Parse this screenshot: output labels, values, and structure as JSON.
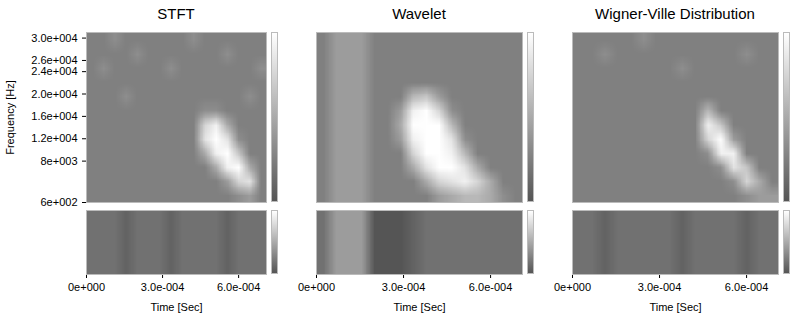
{
  "chart_data": [
    {
      "type": "heatmap",
      "title": "STFT",
      "xlabel": "Time [Sec]",
      "ylabel": "Frequency [Hz]",
      "xlim": [
        0,
        0.00071
      ],
      "ylim": [
        600,
        31000
      ],
      "xticks": [
        {
          "value": 0,
          "label": "0e+000"
        },
        {
          "value": 0.0003,
          "label": "3.0e-004"
        },
        {
          "value": 0.0006,
          "label": "6.0e-004"
        }
      ],
      "yticks": [
        {
          "value": 30000,
          "label": "3.0e+004"
        },
        {
          "value": 26000,
          "label": "2.6e+004"
        },
        {
          "value": 24000,
          "label": "2.4e+004"
        },
        {
          "value": 20000,
          "label": "2.0e+004"
        },
        {
          "value": 16000,
          "label": "1.6e+004"
        },
        {
          "value": 12000,
          "label": "1.2e+004"
        },
        {
          "value": 8000,
          "label": "8e+003"
        },
        {
          "value": 600,
          "label": "6e+002"
        }
      ],
      "colorbar": {
        "range": [
          -3,
          9
        ]
      },
      "cells": [
        [
          0,
          0,
          1,
          0,
          0,
          0,
          0,
          0,
          0,
          1,
          0,
          0,
          0,
          0,
          0,
          0
        ],
        [
          0,
          0,
          0,
          0,
          1,
          0,
          0,
          0,
          0,
          0,
          0,
          0,
          1,
          0,
          0,
          0
        ],
        [
          0,
          1,
          0,
          0,
          0,
          0,
          0,
          1,
          0,
          0,
          0,
          0,
          0,
          0,
          0,
          1
        ],
        [
          0,
          0,
          0,
          0,
          0,
          0,
          0,
          0,
          0,
          0,
          0,
          0,
          0,
          0,
          0,
          0
        ],
        [
          0,
          0,
          0,
          1,
          0,
          0,
          0,
          0,
          0,
          0,
          0,
          0,
          0,
          0,
          1,
          0
        ],
        [
          0,
          0,
          0,
          0,
          0,
          0,
          0,
          0,
          0,
          0,
          1,
          1,
          0,
          0,
          0,
          0
        ],
        [
          0,
          0,
          0,
          0,
          0,
          0,
          0,
          0,
          0,
          0,
          6,
          8,
          3,
          0,
          0,
          0
        ],
        [
          0,
          0,
          0,
          0,
          0,
          0,
          0,
          0,
          0,
          0,
          7,
          9,
          7,
          1,
          0,
          0
        ],
        [
          0,
          0,
          0,
          0,
          0,
          0,
          0,
          0,
          0,
          0,
          3,
          8,
          9,
          5,
          0,
          0
        ],
        [
          0,
          0,
          0,
          0,
          0,
          0,
          0,
          0,
          0,
          0,
          0,
          3,
          8,
          9,
          3,
          0
        ],
        [
          0,
          0,
          0,
          0,
          0,
          0,
          0,
          0,
          0,
          0,
          0,
          0,
          2,
          6,
          7,
          0
        ],
        [
          0,
          0,
          0,
          0,
          0,
          0,
          0,
          0,
          0,
          0,
          0,
          0,
          0,
          1,
          2,
          0
        ]
      ],
      "signal": [
        -1,
        -1,
        -1,
        -2,
        -1,
        -1,
        -1,
        -2,
        -1,
        -1,
        -1,
        -1,
        -2,
        -1,
        -1,
        -1
      ]
    },
    {
      "type": "heatmap",
      "title": "Wavelet",
      "xlabel": "Time [Sec]",
      "tick_labels": "x",
      "xlim": [
        0,
        0.00071
      ],
      "ylim": [
        600,
        31000
      ],
      "xticks": [
        {
          "value": 0,
          "label": "0e+000"
        },
        {
          "value": 0.0003,
          "label": "3.0e-004"
        },
        {
          "value": 0.0006,
          "label": "6.0e-004"
        }
      ],
      "colorbar": {
        "range": [
          -3,
          9
        ]
      },
      "cells": [
        [
          0,
          2,
          2,
          2,
          0,
          0,
          0,
          0,
          0,
          0,
          0,
          0,
          0,
          0,
          0,
          0
        ],
        [
          0,
          2,
          2,
          2,
          0,
          0,
          0,
          0,
          0,
          0,
          0,
          0,
          0,
          0,
          0,
          0
        ],
        [
          0,
          2,
          2,
          2,
          0,
          0,
          0,
          0,
          0,
          0,
          0,
          0,
          0,
          0,
          0,
          0
        ],
        [
          0,
          2,
          2,
          2,
          0,
          0,
          0,
          0,
          0,
          0,
          0,
          0,
          0,
          0,
          0,
          0
        ],
        [
          0,
          2,
          2,
          2,
          0,
          0,
          0,
          4,
          5,
          2,
          0,
          0,
          0,
          0,
          0,
          0
        ],
        [
          0,
          2,
          2,
          2,
          0,
          0,
          2,
          8,
          9,
          6,
          1,
          0,
          0,
          0,
          0,
          0
        ],
        [
          0,
          2,
          2,
          2,
          0,
          0,
          3,
          9,
          9,
          9,
          4,
          0,
          0,
          0,
          0,
          0
        ],
        [
          0,
          2,
          2,
          2,
          0,
          0,
          2,
          8,
          9,
          9,
          7,
          1,
          0,
          0,
          0,
          0
        ],
        [
          0,
          2,
          2,
          2,
          0,
          0,
          0,
          6,
          9,
          9,
          8,
          4,
          0,
          0,
          0,
          0
        ],
        [
          0,
          2,
          2,
          2,
          0,
          0,
          0,
          3,
          7,
          9,
          9,
          7,
          3,
          0,
          0,
          0
        ],
        [
          0,
          2,
          2,
          2,
          0,
          0,
          0,
          0,
          3,
          6,
          7,
          8,
          6,
          3,
          0,
          0
        ],
        [
          0,
          2,
          2,
          2,
          0,
          0,
          0,
          0,
          0,
          2,
          3,
          4,
          4,
          3,
          1,
          0
        ]
      ],
      "signal": [
        -1,
        2,
        2,
        2,
        -3,
        -3,
        -3,
        -2,
        -1,
        -1,
        -1,
        -1,
        -1,
        -1,
        -1,
        -1
      ]
    },
    {
      "type": "heatmap",
      "title": "Wigner-Ville Distribution",
      "xlabel": "Time [Sec]",
      "tick_labels": "x",
      "xlim": [
        0,
        0.00071
      ],
      "ylim": [
        600,
        31000
      ],
      "xticks": [
        {
          "value": 0,
          "label": "0e+000"
        },
        {
          "value": 0.0003,
          "label": "3.0e-004"
        },
        {
          "value": 0.0006,
          "label": "6.0e-004"
        }
      ],
      "colorbar": {
        "range": [
          -3,
          9
        ]
      },
      "cells": [
        [
          0,
          0,
          0,
          0,
          0,
          1,
          0,
          0,
          0,
          0,
          0,
          0,
          0,
          0,
          0,
          0
        ],
        [
          0,
          0,
          1,
          0,
          0,
          0,
          0,
          0,
          0,
          0,
          0,
          0,
          0,
          1,
          0,
          0
        ],
        [
          0,
          0,
          0,
          0,
          0,
          0,
          0,
          0,
          1,
          0,
          0,
          0,
          0,
          0,
          0,
          0
        ],
        [
          0,
          0,
          0,
          0,
          0,
          0,
          0,
          0,
          0,
          0,
          0,
          0,
          0,
          0,
          0,
          0
        ],
        [
          0,
          0,
          0,
          0,
          0,
          0,
          0,
          0,
          0,
          0,
          0,
          0,
          0,
          0,
          0,
          0
        ],
        [
          0,
          0,
          0,
          0,
          0,
          0,
          0,
          0,
          0,
          0,
          4,
          0,
          0,
          0,
          0,
          0
        ],
        [
          0,
          0,
          0,
          0,
          0,
          0,
          0,
          0,
          0,
          0,
          8,
          5,
          0,
          0,
          0,
          0
        ],
        [
          0,
          0,
          0,
          0,
          0,
          0,
          0,
          0,
          0,
          0,
          6,
          9,
          2,
          0,
          0,
          0
        ],
        [
          0,
          0,
          0,
          0,
          0,
          0,
          0,
          0,
          0,
          0,
          1,
          8,
          8,
          0,
          0,
          0
        ],
        [
          0,
          0,
          0,
          0,
          0,
          0,
          0,
          0,
          0,
          0,
          0,
          1,
          7,
          5,
          0,
          0
        ],
        [
          0,
          0,
          0,
          0,
          0,
          0,
          0,
          0,
          0,
          0,
          0,
          0,
          1,
          6,
          3,
          0
        ],
        [
          0,
          0,
          0,
          0,
          0,
          0,
          0,
          0,
          0,
          0,
          0,
          0,
          0,
          1,
          2,
          2
        ]
      ],
      "signal": [
        -1,
        -1,
        -2,
        -1,
        -1,
        -1,
        -1,
        -1,
        -2,
        -1,
        -1,
        -1,
        -1,
        -2,
        -1,
        -1
      ]
    }
  ]
}
